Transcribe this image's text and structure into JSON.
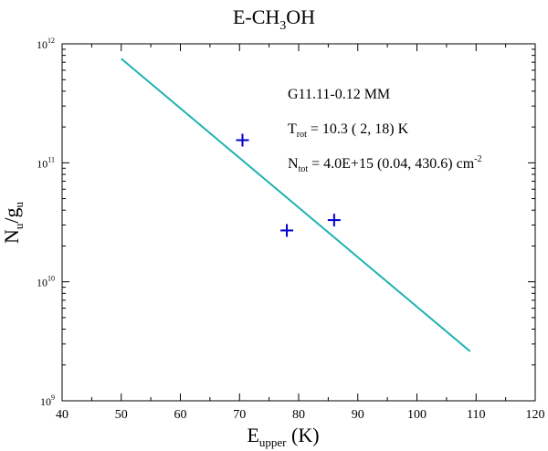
{
  "chart_data": {
    "type": "scatter",
    "title": "E-CH",
    "title_sub": "3",
    "title_tail": "OH",
    "xlabel": "E",
    "xlabel_sub": "upper",
    "xlabel_tail": " (K)",
    "ylabel": "N",
    "ylabel_sub": "u",
    "ylabel_mid": "/g",
    "ylabel_sub2": "u",
    "xlim": [
      40,
      120
    ],
    "ylim": [
      1000000000.0,
      1000000000000.0
    ],
    "yscale": "log",
    "grid": false,
    "x_ticks": [
      40,
      50,
      60,
      70,
      80,
      90,
      100,
      110,
      120
    ],
    "x_tick_labels": [
      "40",
      "50",
      "60",
      "70",
      "80",
      "90",
      "100",
      "110",
      "120"
    ],
    "y_ticks": [
      1000000000.0,
      10000000000.0,
      100000000000.0,
      1000000000000.0
    ],
    "y_tick_labels": [
      {
        "base": "10",
        "exp": "9"
      },
      {
        "base": "10",
        "exp": "10"
      },
      {
        "base": "10",
        "exp": "11"
      },
      {
        "base": "10",
        "exp": "12"
      }
    ],
    "series": [
      {
        "type": "scatter",
        "marker": "plus",
        "color": "#0000cc",
        "x": [
          70.5,
          78.0,
          86.0
        ],
        "y": [
          155000000000.0,
          27000000000.0,
          33000000000.0
        ]
      },
      {
        "type": "line",
        "color": "#20b2b2",
        "x": [
          50,
          109
        ],
        "y": [
          750000000000.0,
          2600000000.0
        ]
      }
    ],
    "annotations": {
      "source": "G11.11-0.12 MM",
      "trot_label": "T",
      "trot_sub": "rot",
      "trot_value": " = 10.3 ( 2, 18) K",
      "ntot_label": "N",
      "ntot_sub": "tot",
      "ntot_value": " = 4.0E+15  (0.04, 430.6) cm",
      "ntot_exp": "-2"
    }
  }
}
